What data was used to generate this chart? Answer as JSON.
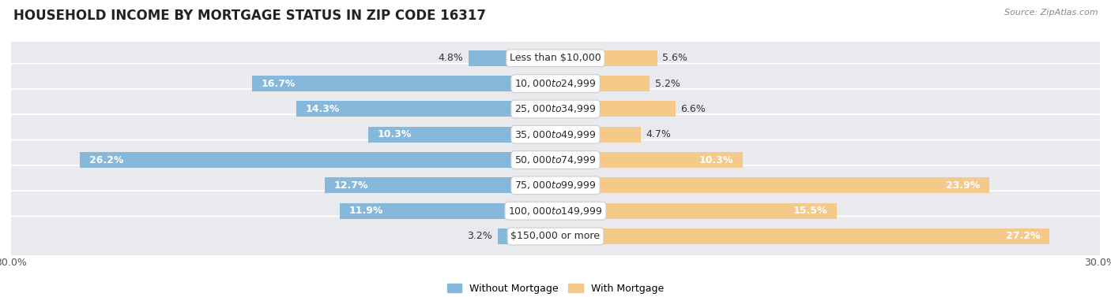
{
  "title": "HOUSEHOLD INCOME BY MORTGAGE STATUS IN ZIP CODE 16317",
  "source": "Source: ZipAtlas.com",
  "categories": [
    "Less than $10,000",
    "$10,000 to $24,999",
    "$25,000 to $34,999",
    "$35,000 to $49,999",
    "$50,000 to $74,999",
    "$75,000 to $99,999",
    "$100,000 to $149,999",
    "$150,000 or more"
  ],
  "without_mortgage": [
    4.8,
    16.7,
    14.3,
    10.3,
    26.2,
    12.7,
    11.9,
    3.2
  ],
  "with_mortgage": [
    5.6,
    5.2,
    6.6,
    4.7,
    10.3,
    23.9,
    15.5,
    27.2
  ],
  "without_mortgage_color": "#85b8db",
  "with_mortgage_color": "#f5c98a",
  "bg_color": "#ffffff",
  "row_bg_color": "#e8eaed",
  "xlim": 30.0,
  "title_fontsize": 12,
  "label_fontsize": 9,
  "tick_fontsize": 9,
  "bar_height": 0.62,
  "legend_label_without": "Without Mortgage",
  "legend_label_with": "With Mortgage"
}
